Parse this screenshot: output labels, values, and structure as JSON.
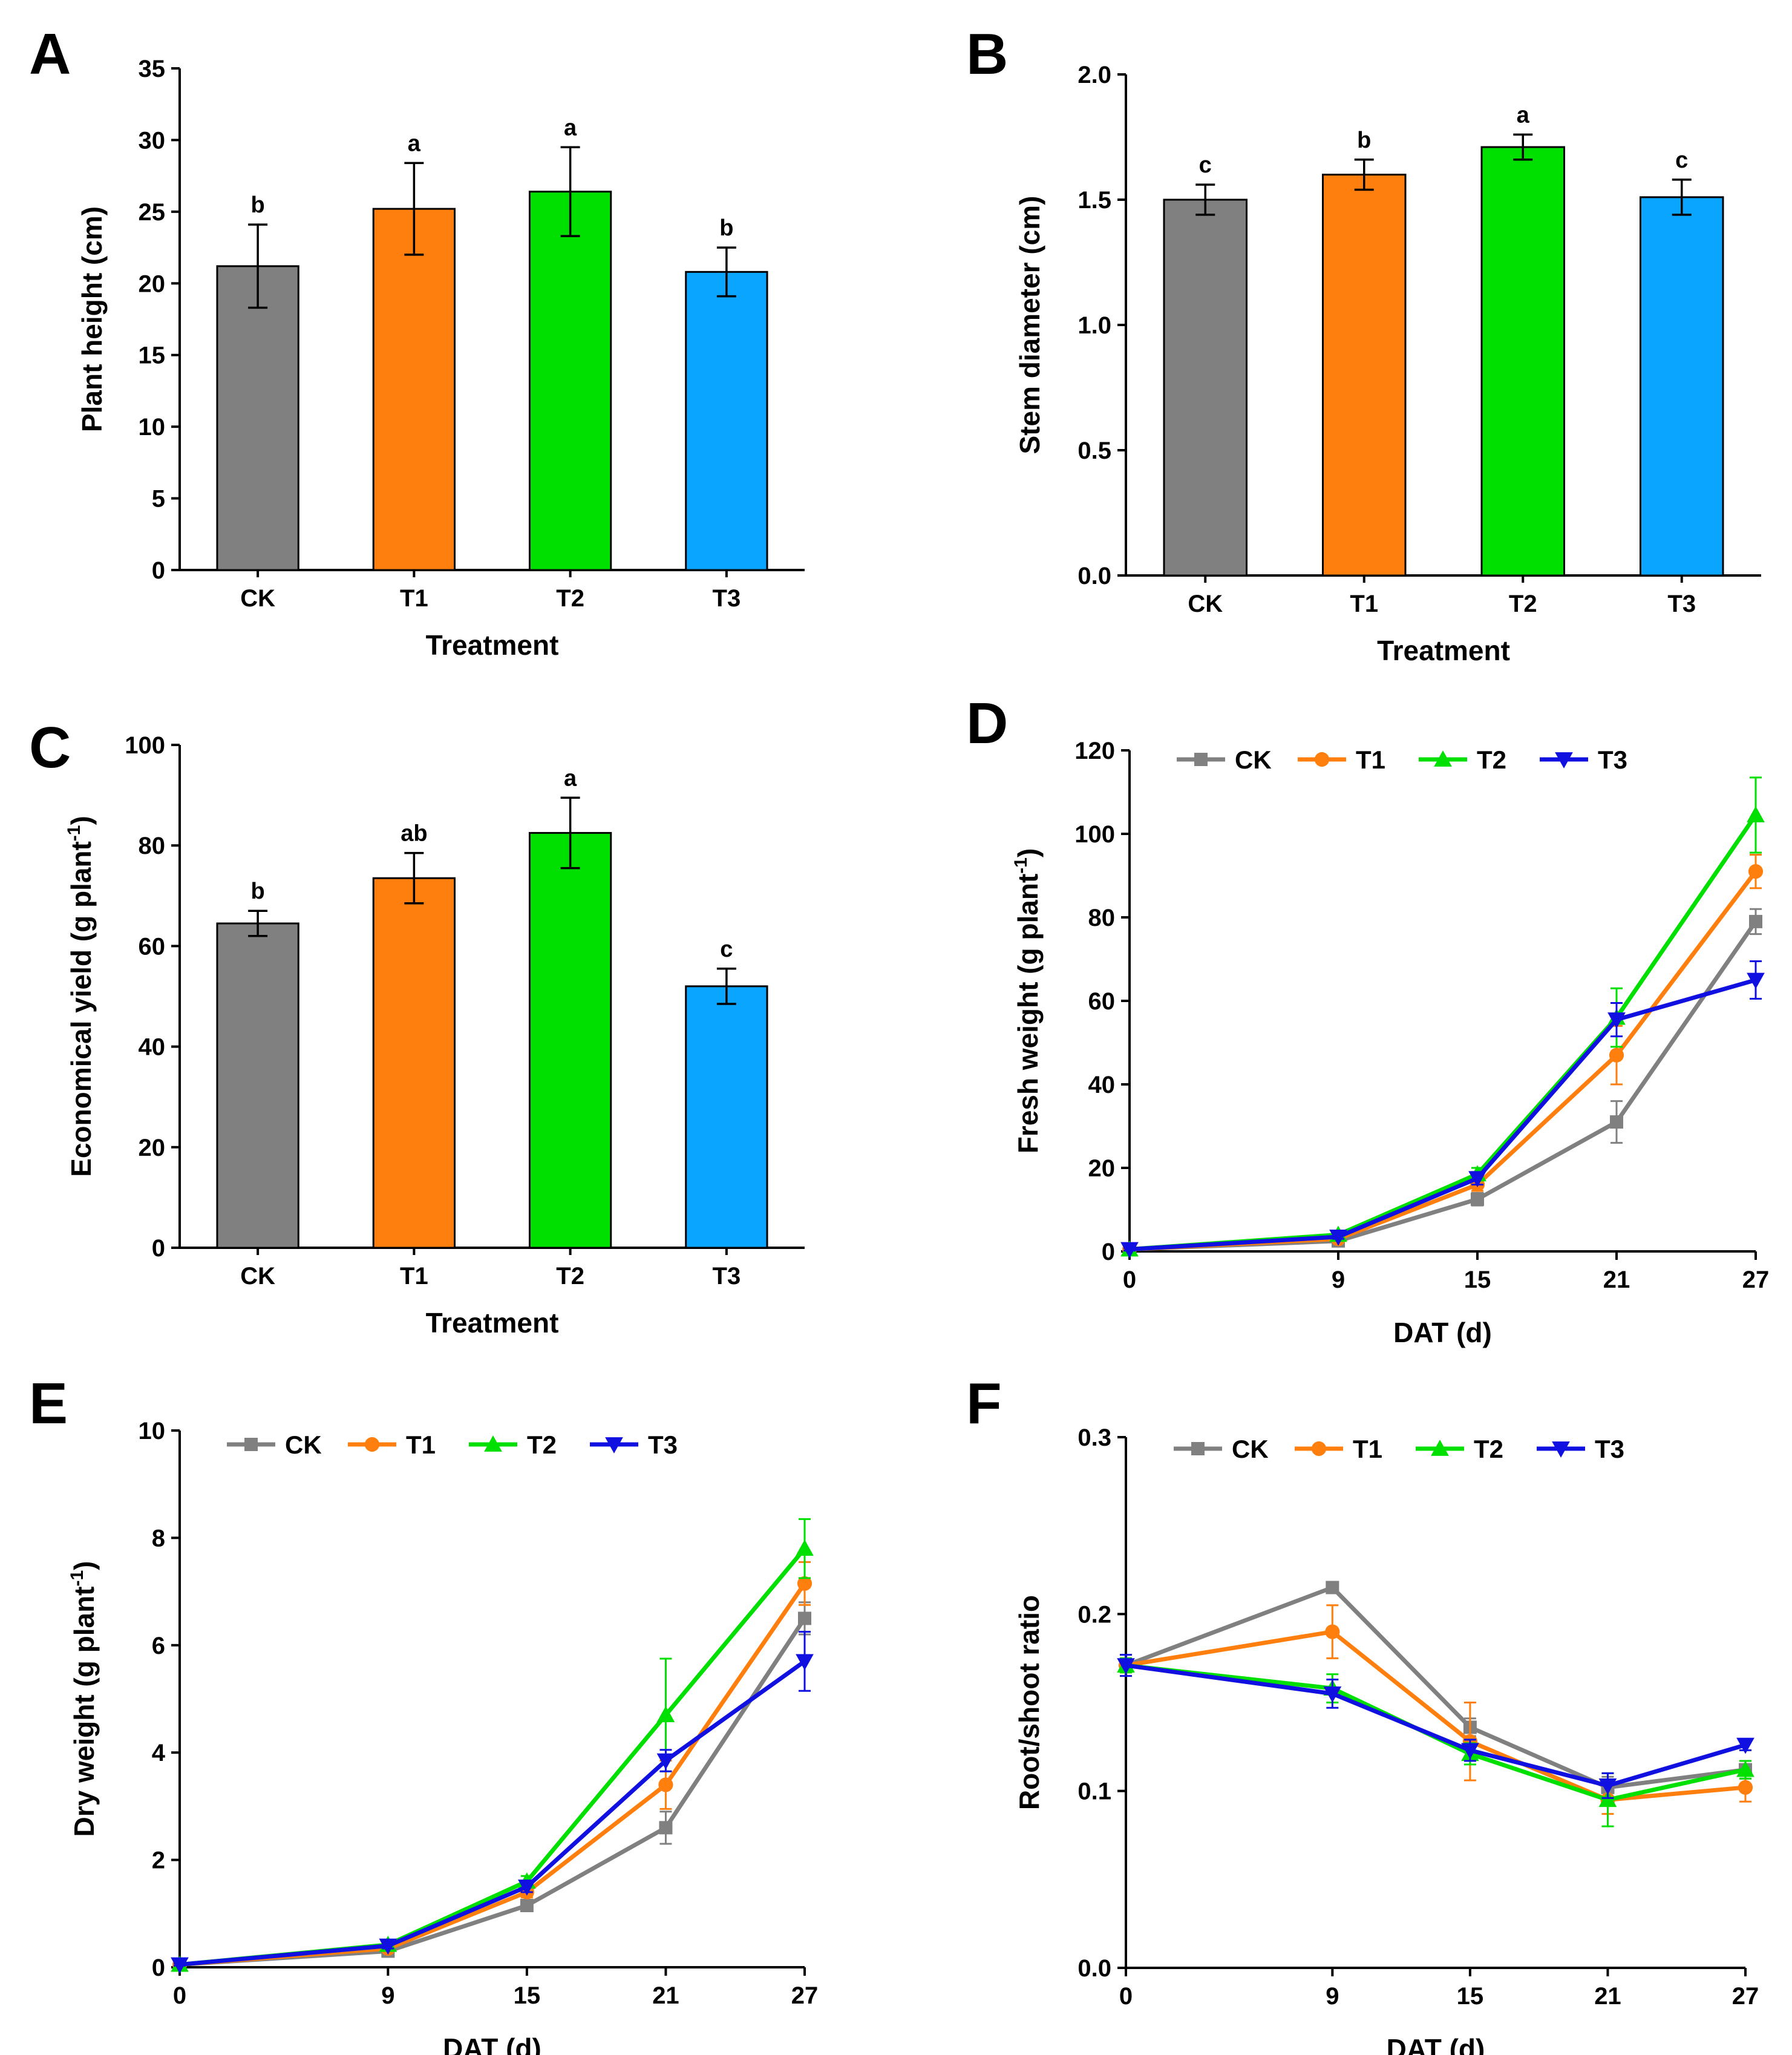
{
  "colors": {
    "CK": "#808080",
    "T1": "#ff7f0e",
    "T2": "#00e000",
    "T3": "#0aa5ff",
    "T3_line": "#1010e0"
  },
  "chart_data": [
    {
      "panel": "A",
      "type": "bar",
      "categories": [
        "CK",
        "T1",
        "T2",
        "T3"
      ],
      "values": [
        21.2,
        25.2,
        26.4,
        20.8
      ],
      "errors": [
        2.9,
        3.2,
        3.1,
        1.7
      ],
      "sig_labels": [
        "b",
        "a",
        "a",
        "b"
      ],
      "xlabel": "Treatment",
      "ylabel": "Plant height (cm)",
      "ylim": [
        0,
        35
      ],
      "yticks": [
        0,
        5,
        10,
        15,
        20,
        25,
        30,
        35
      ],
      "ytick_labels": [
        "0",
        "5",
        "10",
        "15",
        "20",
        "25",
        "30",
        "35"
      ]
    },
    {
      "panel": "B",
      "type": "bar",
      "categories": [
        "CK",
        "T1",
        "T2",
        "T3"
      ],
      "values": [
        1.5,
        1.6,
        1.71,
        1.51
      ],
      "errors": [
        0.06,
        0.06,
        0.05,
        0.07
      ],
      "sig_labels": [
        "c",
        "b",
        "a",
        "c"
      ],
      "xlabel": "Treatment",
      "ylabel": "Stem diameter (cm)",
      "ylim": [
        0,
        2.0
      ],
      "yticks": [
        0,
        0.5,
        1.0,
        1.5,
        2.0
      ],
      "ytick_labels": [
        "0.0",
        "0.5",
        "1.0",
        "1.5",
        "2.0"
      ]
    },
    {
      "panel": "C",
      "type": "bar",
      "categories": [
        "CK",
        "T1",
        "T2",
        "T3"
      ],
      "values": [
        64.5,
        73.5,
        82.5,
        52
      ],
      "errors": [
        2.5,
        5,
        7,
        3.5
      ],
      "sig_labels": [
        "b",
        "ab",
        "a",
        "c"
      ],
      "xlabel": "Treatment",
      "ylabel": "Economical yield (g plant",
      "ylabel_sup": "-1",
      "ylabel_end": ")",
      "ylim": [
        0,
        100
      ],
      "yticks": [
        0,
        20,
        40,
        60,
        80,
        100
      ],
      "ytick_labels": [
        "0",
        "20",
        "40",
        "60",
        "80",
        "100"
      ]
    },
    {
      "panel": "D",
      "type": "line",
      "x": [
        0,
        9,
        15,
        21,
        27
      ],
      "xtick_labels": [
        "0",
        "9",
        "15",
        "21",
        "27"
      ],
      "series": [
        {
          "name": "CK",
          "values": [
            0.5,
            2.5,
            12.5,
            31,
            79
          ],
          "errors": [
            0.3,
            0.5,
            1.5,
            5,
            3
          ]
        },
        {
          "name": "T1",
          "values": [
            0.5,
            3,
            16,
            47,
            91
          ],
          "errors": [
            0.3,
            0.5,
            1.5,
            7,
            4
          ]
        },
        {
          "name": "T2",
          "values": [
            0.5,
            4,
            18.5,
            56,
            104.5
          ],
          "errors": [
            0.3,
            0.5,
            1.5,
            7,
            9
          ]
        },
        {
          "name": "T3",
          "values": [
            0.5,
            3.5,
            17.5,
            55.5,
            65
          ],
          "errors": [
            0.3,
            0.5,
            1.5,
            4,
            4.5
          ]
        }
      ],
      "xlabel": "DAT (d)",
      "ylabel": "Fresh weight (g plant",
      "ylabel_sup": "-1",
      "ylabel_end": ")",
      "xlim": [
        0,
        27
      ],
      "ylim": [
        0,
        120
      ],
      "yticks": [
        0,
        20,
        40,
        60,
        80,
        100,
        120
      ],
      "ytick_labels": [
        "0",
        "20",
        "40",
        "60",
        "80",
        "100",
        "120"
      ],
      "legend": [
        "CK",
        "T1",
        "T2",
        "T3"
      ],
      "legend_position": "top-left"
    },
    {
      "panel": "E",
      "type": "line",
      "x": [
        0,
        9,
        15,
        21,
        27
      ],
      "xtick_labels": [
        "0",
        "9",
        "15",
        "21",
        "27"
      ],
      "series": [
        {
          "name": "CK",
          "values": [
            0.05,
            0.3,
            1.15,
            2.6,
            6.5
          ],
          "errors": [
            0.02,
            0.05,
            0.1,
            0.3,
            0.3
          ]
        },
        {
          "name": "T1",
          "values": [
            0.05,
            0.35,
            1.4,
            3.4,
            7.15
          ],
          "errors": [
            0.02,
            0.05,
            0.1,
            0.45,
            0.4
          ]
        },
        {
          "name": "T2",
          "values": [
            0.05,
            0.42,
            1.6,
            4.7,
            7.8
          ],
          "errors": [
            0.02,
            0.05,
            0.1,
            1.05,
            0.55
          ]
        },
        {
          "name": "T3",
          "values": [
            0.05,
            0.4,
            1.5,
            3.85,
            5.7
          ],
          "errors": [
            0.02,
            0.05,
            0.1,
            0.2,
            0.55
          ]
        }
      ],
      "xlabel": "DAT (d)",
      "ylabel": "Dry weight (g plant",
      "ylabel_sup": "-1",
      "ylabel_end": ")",
      "xlim": [
        0,
        27
      ],
      "ylim": [
        0,
        10
      ],
      "yticks": [
        0,
        2,
        4,
        6,
        8,
        10
      ],
      "ytick_labels": [
        "0",
        "2",
        "4",
        "6",
        "8",
        "10"
      ],
      "legend": [
        "CK",
        "T1",
        "T2",
        "T3"
      ],
      "legend_position": "top-left"
    },
    {
      "panel": "F",
      "type": "line",
      "x": [
        0,
        9,
        15,
        21,
        27
      ],
      "xtick_labels": [
        "0",
        "9",
        "15",
        "21",
        "27"
      ],
      "series": [
        {
          "name": "CK",
          "values": [
            0.171,
            0.215,
            0.136,
            0.102,
            0.112
          ],
          "errors": [
            0.004,
            0.003,
            0.005,
            0.006,
            0.005
          ]
        },
        {
          "name": "T1",
          "values": [
            0.171,
            0.19,
            0.128,
            0.095,
            0.102
          ],
          "errors": [
            0.004,
            0.015,
            0.022,
            0.008,
            0.008
          ]
        },
        {
          "name": "T2",
          "values": [
            0.171,
            0.158,
            0.121,
            0.095,
            0.112
          ],
          "errors": [
            0.004,
            0.008,
            0.006,
            0.015,
            0.005
          ]
        },
        {
          "name": "T3",
          "values": [
            0.171,
            0.155,
            0.123,
            0.103,
            0.126
          ],
          "errors": [
            0.006,
            0.008,
            0.006,
            0.007,
            0.003
          ]
        }
      ],
      "xlabel": "DAT (d)",
      "ylabel": "Root/shoot ratio",
      "xlim": [
        0,
        27
      ],
      "ylim": [
        0,
        0.3
      ],
      "yticks": [
        0,
        0.1,
        0.2,
        0.3
      ],
      "ytick_labels": [
        "0.0",
        "0.1",
        "0.2",
        "0.3"
      ],
      "legend": [
        "CK",
        "T1",
        "T2",
        "T3"
      ],
      "legend_position": "top-left"
    }
  ]
}
